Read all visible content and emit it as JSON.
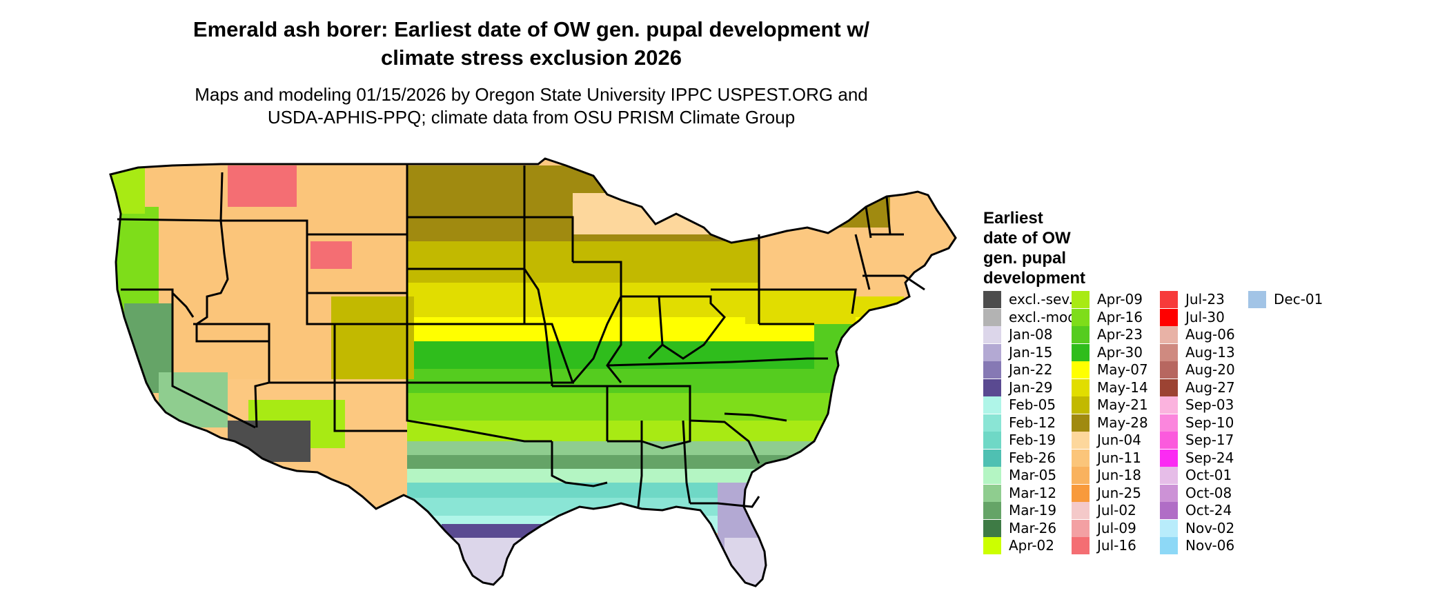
{
  "title_line1": "Emerald ash borer: Earliest date of OW gen. pupal development w/",
  "title_line2": "climate stress exclusion 2026",
  "subtitle_line1": "Maps and modeling 01/15/2026 by Oregon State University IPPC USPEST.ORG and",
  "subtitle_line2": "USDA-APHIS-PPQ; climate data from OSU PRISM Climate Group",
  "legend": {
    "title_lines": [
      "Earliest",
      "date of OW",
      "gen. pupal",
      "development"
    ],
    "items": [
      {
        "label": "excl.-sev.",
        "color": "#4d4d4d"
      },
      {
        "label": "excl.-mod.",
        "color": "#b3b3b3"
      },
      {
        "label": "Jan-08",
        "color": "#dcd6ea"
      },
      {
        "label": "Jan-15",
        "color": "#b3a9d3"
      },
      {
        "label": "Jan-22",
        "color": "#8679b4"
      },
      {
        "label": "Jan-29",
        "color": "#5a4a91"
      },
      {
        "label": "Feb-05",
        "color": "#aff5e8"
      },
      {
        "label": "Feb-12",
        "color": "#8ae5d5"
      },
      {
        "label": "Feb-19",
        "color": "#6fd8c6"
      },
      {
        "label": "Feb-26",
        "color": "#4fc0b2"
      },
      {
        "label": "Mar-05",
        "color": "#b4f5c3"
      },
      {
        "label": "Mar-12",
        "color": "#8fcd8f"
      },
      {
        "label": "Mar-19",
        "color": "#65a467"
      },
      {
        "label": "Mar-26",
        "color": "#3e7b45"
      },
      {
        "label": "Apr-02",
        "color": "#ccff00"
      },
      {
        "label": "Apr-09",
        "color": "#a8ea14"
      },
      {
        "label": "Apr-16",
        "color": "#7edd1a"
      },
      {
        "label": "Apr-23",
        "color": "#55cc1f"
      },
      {
        "label": "Apr-30",
        "color": "#2fbd1c"
      },
      {
        "label": "May-07",
        "color": "#ffff00"
      },
      {
        "label": "May-14",
        "color": "#e1dd00"
      },
      {
        "label": "May-21",
        "color": "#c2b900"
      },
      {
        "label": "May-28",
        "color": "#a08a10"
      },
      {
        "label": "Jun-04",
        "color": "#fdd79c"
      },
      {
        "label": "Jun-11",
        "color": "#fbc57a"
      },
      {
        "label": "Jun-18",
        "color": "#f9b25e"
      },
      {
        "label": "Jun-25",
        "color": "#f89a3c"
      },
      {
        "label": "Jul-02",
        "color": "#f4c9c9"
      },
      {
        "label": "Jul-09",
        "color": "#f3a0a3"
      },
      {
        "label": "Jul-16",
        "color": "#f46e73"
      },
      {
        "label": "Jul-23",
        "color": "#f73a3a"
      },
      {
        "label": "Jul-30",
        "color": "#ff0000"
      },
      {
        "label": "Aug-06",
        "color": "#e8b2a6"
      },
      {
        "label": "Aug-13",
        "color": "#cf8a80"
      },
      {
        "label": "Aug-20",
        "color": "#b76760"
      },
      {
        "label": "Aug-27",
        "color": "#9c4333"
      },
      {
        "label": "Sep-03",
        "color": "#fbb3de"
      },
      {
        "label": "Sep-10",
        "color": "#fb86dd"
      },
      {
        "label": "Sep-17",
        "color": "#fb5add"
      },
      {
        "label": "Sep-24",
        "color": "#fb2bf3"
      },
      {
        "label": "Oct-01",
        "color": "#e6bde8"
      },
      {
        "label": "Oct-08",
        "color": "#cc92d6"
      },
      {
        "label": "Oct-24",
        "color": "#b06dc6"
      },
      {
        "label": "Nov-02",
        "color": "#b8ecfb"
      },
      {
        "label": "Nov-06",
        "color": "#8dd8f6"
      },
      {
        "label": "Dec-01",
        "color": "#a2c4e6"
      }
    ]
  }
}
